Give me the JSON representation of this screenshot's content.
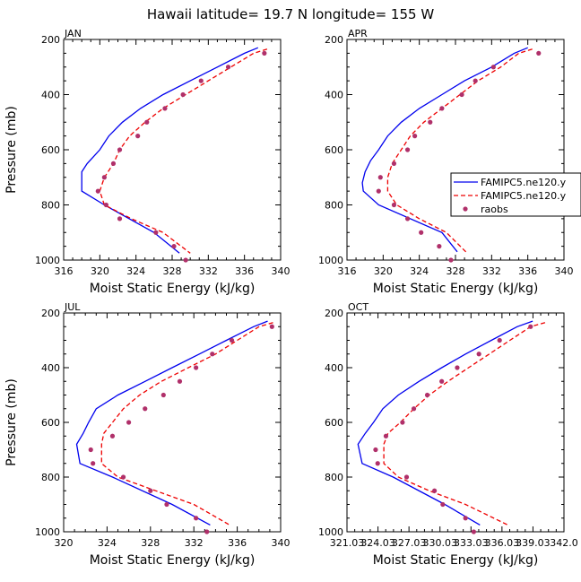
{
  "figure_title": "Hawaii  latitude= 19.7 N longitude= 155 W",
  "colors": {
    "famipc5_solid": "#0000ee",
    "famipc5_dashed": "#ee0000",
    "raobs": "#b0306a",
    "axes": "#000000"
  },
  "legend": {
    "panel_index": 1,
    "entries": [
      {
        "label": "FAMIPC5.ne120.y",
        "style": "solid",
        "color": "#0000ee"
      },
      {
        "label": "FAMIPC5.ne120.y",
        "style": "dashed",
        "color": "#ee0000"
      },
      {
        "label": "raobs",
        "style": "dots",
        "color": "#b0306a"
      }
    ]
  },
  "chart_data": [
    {
      "type": "line",
      "panel_label": "JAN",
      "xlabel": "Moist Static Energy (kJ/kg)",
      "ylabel": "Pressure (mb)",
      "xlim": [
        316,
        340
      ],
      "ylim": [
        1000,
        200
      ],
      "xticks": [
        316,
        320,
        324,
        328,
        332,
        336,
        340
      ],
      "xtick_labels": [
        "316",
        "320",
        "324",
        "328",
        "332",
        "336",
        "340"
      ],
      "yticks": [
        200,
        400,
        600,
        800,
        1000
      ],
      "ytick_labels": [
        "200",
        "400",
        "600",
        "800",
        "1000"
      ],
      "series": [
        {
          "name": "FAMIPC5.ne120.y (solid)",
          "style": "solid",
          "color": "#0000ee",
          "x": [
            337.5,
            336,
            333,
            330,
            327,
            324.5,
            322.5,
            321,
            320,
            319.3,
            318.6,
            318,
            318,
            320.5,
            326,
            328.8
          ],
          "p": [
            230,
            250,
            300,
            350,
            400,
            450,
            500,
            550,
            600,
            625,
            650,
            680,
            750,
            800,
            900,
            975
          ]
        },
        {
          "name": "FAMIPC5.ne120.y (dashed)",
          "style": "dashed",
          "color": "#ee0000",
          "x": [
            338.5,
            337,
            334.5,
            332,
            329.5,
            327,
            325,
            323.3,
            322.2,
            321.5,
            320.5,
            320,
            320.5,
            323.5,
            327,
            330
          ],
          "p": [
            235,
            250,
            300,
            350,
            400,
            450,
            500,
            550,
            600,
            650,
            700,
            750,
            800,
            850,
            900,
            975
          ]
        },
        {
          "name": "raobs",
          "style": "dots",
          "color": "#b0306a",
          "x": [
            338.2,
            334.2,
            331.2,
            329.2,
            327.2,
            325.2,
            324.2,
            322.2,
            321.5,
            320.5,
            319.8,
            320.7,
            322.2,
            326.2,
            328.2,
            329.5
          ],
          "p": [
            250,
            300,
            350,
            400,
            450,
            500,
            550,
            600,
            650,
            700,
            750,
            800,
            850,
            900,
            950,
            1000
          ]
        }
      ]
    },
    {
      "type": "line",
      "panel_label": "APR",
      "xlabel": "Moist Static Energy (kJ/kg)",
      "ylabel": "",
      "xlim": [
        316,
        340
      ],
      "ylim": [
        1000,
        200
      ],
      "xticks": [
        316,
        320,
        324,
        328,
        332,
        336,
        340
      ],
      "xtick_labels": [
        "316",
        "320",
        "324",
        "328",
        "332",
        "336",
        "340"
      ],
      "yticks": [
        200,
        400,
        600,
        800,
        1000
      ],
      "ytick_labels": [
        "200",
        "400",
        "600",
        "800",
        "1000"
      ],
      "series": [
        {
          "name": "FAMIPC5.ne120.y (solid)",
          "style": "solid",
          "color": "#0000ee",
          "x": [
            336,
            334.5,
            332,
            329,
            326.5,
            324,
            322,
            320.5,
            319.5,
            318.6,
            318,
            317.7,
            317.8,
            319.5,
            326.5,
            328.2
          ],
          "p": [
            230,
            250,
            300,
            350,
            400,
            450,
            500,
            550,
            600,
            640,
            680,
            720,
            750,
            800,
            900,
            970
          ]
        },
        {
          "name": "FAMIPC5.ne120.y (dashed)",
          "style": "dashed",
          "color": "#ee0000",
          "x": [
            336.5,
            335,
            333,
            330.5,
            328.5,
            326.5,
            324.5,
            323,
            322,
            321,
            320.5,
            320.5,
            321.5,
            324,
            327,
            329.3
          ],
          "p": [
            235,
            250,
            300,
            350,
            400,
            450,
            500,
            550,
            600,
            650,
            700,
            750,
            800,
            850,
            900,
            975
          ]
        },
        {
          "name": "raobs",
          "style": "dots",
          "color": "#b0306a",
          "x": [
            337.2,
            332.2,
            330.2,
            328.7,
            326.5,
            325.2,
            323.5,
            322.7,
            321.2,
            319.7,
            319.5,
            321.2,
            322.7,
            324.2,
            326.2,
            327.5
          ],
          "p": [
            250,
            300,
            350,
            400,
            450,
            500,
            550,
            600,
            650,
            700,
            750,
            800,
            850,
            900,
            950,
            1000
          ]
        }
      ]
    },
    {
      "type": "line",
      "panel_label": "JUL",
      "xlabel": "Moist Static Energy (kJ/kg)",
      "ylabel": "Pressure (mb)",
      "xlim": [
        320,
        340
      ],
      "ylim": [
        1000,
        200
      ],
      "xticks": [
        320,
        324,
        328,
        332,
        336,
        340
      ],
      "xtick_labels": [
        "320",
        "324",
        "328",
        "332",
        "336",
        "340"
      ],
      "yticks": [
        200,
        400,
        600,
        800,
        1000
      ],
      "ytick_labels": [
        "200",
        "400",
        "600",
        "800",
        "1000"
      ],
      "series": [
        {
          "name": "FAMIPC5.ne120.y (solid)",
          "style": "solid",
          "color": "#0000ee",
          "x": [
            338.8,
            337.5,
            335,
            332.5,
            330,
            327.5,
            325,
            323,
            322.3,
            321.8,
            321.2,
            321.5,
            324.5,
            330,
            333.5
          ],
          "p": [
            230,
            250,
            300,
            350,
            400,
            450,
            500,
            550,
            600,
            640,
            680,
            750,
            800,
            900,
            975
          ]
        },
        {
          "name": "FAMIPC5.ne120.y (dashed)",
          "style": "dashed",
          "color": "#ee0000",
          "x": [
            339.3,
            338,
            336,
            334,
            331.5,
            329,
            327,
            325.5,
            324.5,
            323.7,
            323.5,
            323.5,
            325,
            328.5,
            332,
            335.3
          ],
          "p": [
            235,
            250,
            300,
            350,
            400,
            450,
            500,
            550,
            600,
            640,
            680,
            750,
            800,
            850,
            900,
            975
          ]
        },
        {
          "name": "raobs",
          "style": "dots",
          "color": "#b0306a",
          "x": [
            339.2,
            335.5,
            333.7,
            332.2,
            330.7,
            329.2,
            327.5,
            326,
            324.5,
            322.5,
            322.7,
            325.5,
            328,
            329.5,
            332.2,
            333.2
          ],
          "p": [
            250,
            300,
            350,
            400,
            450,
            500,
            550,
            600,
            650,
            700,
            750,
            800,
            850,
            900,
            950,
            1000
          ]
        }
      ]
    },
    {
      "type": "line",
      "panel_label": "OCT",
      "xlabel": "Moist Static Energy (kJ/kg)",
      "ylabel": "",
      "xlim": [
        321.03,
        342.03
      ],
      "ylim": [
        1000,
        200
      ],
      "xticks": [
        321.03,
        324.03,
        327.03,
        330.03,
        333.03,
        336.03,
        339.03,
        342.03
      ],
      "xtick_labels": [
        "321.03",
        "324.03",
        "327.03",
        "330.03",
        "333.03",
        "336.03",
        "339.03",
        "342.0"
      ],
      "yticks": [
        200,
        400,
        600,
        800,
        1000
      ],
      "ytick_labels": [
        "200",
        "400",
        "600",
        "800",
        "1000"
      ],
      "series": [
        {
          "name": "FAMIPC5.ne120.y (solid)",
          "style": "solid",
          "color": "#0000ee",
          "x": [
            339,
            337.5,
            335,
            332.5,
            330.2,
            328,
            326,
            324.5,
            323.6,
            322.8,
            322.1,
            322.5,
            325.5,
            330.5,
            333.9
          ],
          "p": [
            230,
            250,
            300,
            350,
            400,
            450,
            500,
            550,
            600,
            640,
            680,
            750,
            800,
            900,
            975
          ]
        },
        {
          "name": "FAMIPC5.ne120.y (dashed)",
          "style": "dashed",
          "color": "#ee0000",
          "x": [
            340.2,
            338.8,
            336.8,
            334.8,
            332.8,
            330.8,
            329,
            327.5,
            326.2,
            325,
            324.6,
            324.6,
            326,
            329,
            332.5,
            336.6
          ],
          "p": [
            235,
            250,
            300,
            350,
            400,
            450,
            500,
            550,
            600,
            640,
            680,
            750,
            800,
            850,
            900,
            975
          ]
        },
        {
          "name": "raobs",
          "style": "dots",
          "color": "#b0306a",
          "x": [
            338.8,
            335.8,
            333.8,
            331.7,
            330.2,
            328.8,
            327.5,
            326.4,
            324.8,
            323.8,
            324,
            326.8,
            329.5,
            330.3,
            332.5,
            333.3
          ],
          "p": [
            250,
            300,
            350,
            400,
            450,
            500,
            550,
            600,
            650,
            700,
            750,
            800,
            850,
            900,
            950,
            1000
          ]
        }
      ]
    }
  ]
}
